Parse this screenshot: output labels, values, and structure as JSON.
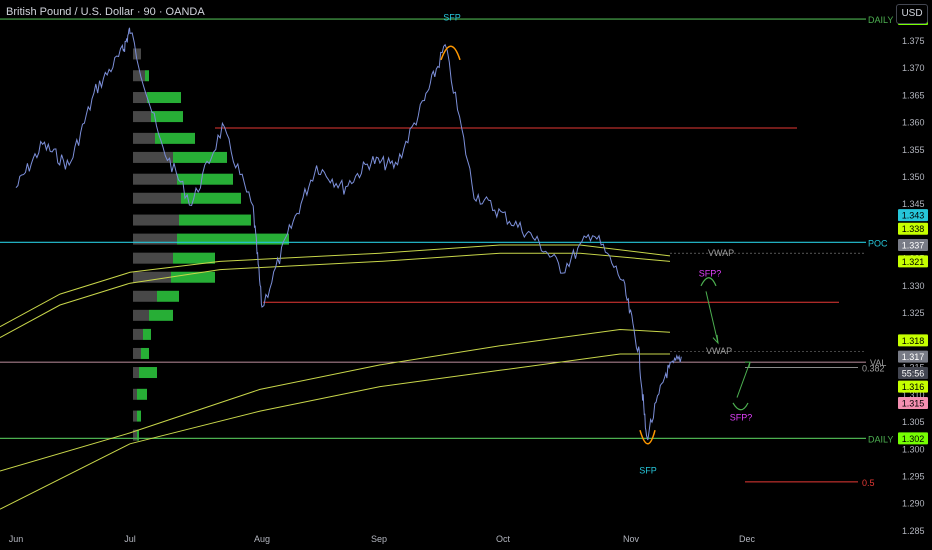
{
  "header": {
    "symbol_title": "British Pound / U.S. Dollar · 90 · OANDA",
    "currency_button": "USD"
  },
  "colors": {
    "background": "#000000",
    "price_line": "#7c8fd9",
    "daily_level": "#4caf50",
    "poc": "#26c6da",
    "red_level": "#e53935",
    "vwap": "#c8d64a",
    "sfp_orange": "#ff9800",
    "sfp_magenta": "#e040fb",
    "sfp_cyan": "#26c6da",
    "vp_green": "#2ecc40",
    "vp_gray": "#555555"
  },
  "chart_data": {
    "type": "line",
    "xlabel": "",
    "ylabel": "",
    "x_ticks": [
      "Jun",
      "Jul",
      "Aug",
      "Sep",
      "Oct",
      "Nov",
      "Dec"
    ],
    "y_ticks": [
      1.285,
      1.29,
      1.295,
      1.3,
      1.305,
      1.31,
      1.315,
      1.32,
      1.325,
      1.33,
      1.335,
      1.34,
      1.345,
      1.35,
      1.355,
      1.36,
      1.365,
      1.37,
      1.375
    ],
    "ylim": [
      1.2815,
      1.3825
    ],
    "grid": false,
    "price_series": {
      "x": [
        "Jun 1",
        "Jun 8",
        "Jun 15",
        "Jun 22",
        "Jun 29",
        "Jul 1",
        "Jul 8",
        "Jul 15",
        "Jul 22",
        "Jul 29",
        "Aug 1",
        "Aug 8",
        "Aug 15",
        "Aug 22",
        "Aug 29",
        "Sep 5",
        "Sep 12",
        "Sep 17",
        "Sep 24",
        "Oct 1",
        "Oct 8",
        "Oct 15",
        "Oct 22",
        "Oct 29",
        "Nov 3",
        "Nov 5",
        "Nov 10",
        "Nov 14"
      ],
      "values": [
        1.348,
        1.356,
        1.352,
        1.366,
        1.373,
        1.377,
        1.356,
        1.345,
        1.359,
        1.344,
        1.326,
        1.34,
        1.352,
        1.348,
        1.353,
        1.352,
        1.364,
        1.374,
        1.347,
        1.343,
        1.339,
        1.333,
        1.34,
        1.331,
        1.318,
        1.302,
        1.314,
        1.317
      ]
    },
    "horizontal_levels": [
      {
        "label": "DAILY",
        "value": 1.379,
        "badge": "1.379"
      },
      {
        "label": "POC",
        "value": 1.338,
        "badge": "1.338"
      },
      {
        "label": "DAILY",
        "value": 1.302,
        "badge": "1.302"
      },
      {
        "label": "",
        "value": 1.359
      },
      {
        "label": "",
        "value": 1.327
      },
      {
        "label": "VAL",
        "value": 1.316
      },
      {
        "label": "0.382",
        "value": 1.315
      },
      {
        "label": "0.5",
        "value": 1.294
      }
    ],
    "vwap_labels": [
      {
        "label": "VWAP",
        "value": 1.336
      },
      {
        "label": "VWAP",
        "value": 1.318
      }
    ],
    "annotations": [
      {
        "text": "SFP",
        "x": "Sep 17",
        "value": 1.378
      },
      {
        "text": "SFP",
        "x": "Nov 5",
        "value": 1.297
      },
      {
        "text": "SFP?",
        "value": 1.331
      },
      {
        "text": "SFP?",
        "value": 1.306
      }
    ],
    "price_badges": [
      "1.343",
      "1.338",
      "1.337",
      "1.321",
      "1.318",
      "1.317",
      "55:56",
      "1.316",
      "1.315"
    ],
    "volume_profile": "visible range, left side (Jul–Aug)"
  }
}
